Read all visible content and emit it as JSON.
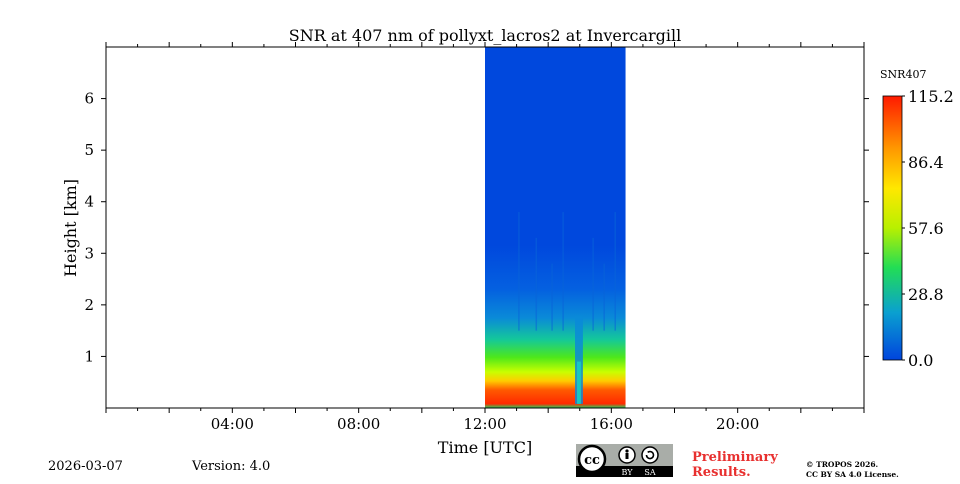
{
  "chart_data": {
    "type": "heatmap",
    "title": "SNR at 407 nm of pollyxt_lacros2 at Invercargill",
    "xlabel": "Time [UTC]",
    "ylabel": "Height [km]",
    "xlim_hours": [
      0,
      24
    ],
    "ylim_km": [
      0,
      7
    ],
    "x_ticks": [
      {
        "value": 4,
        "label": "04:00"
      },
      {
        "value": 8,
        "label": "08:00"
      },
      {
        "value": 12,
        "label": "12:00"
      },
      {
        "value": 16,
        "label": "16:00"
      },
      {
        "value": 20,
        "label": "20:00"
      }
    ],
    "y_ticks": [
      {
        "value": 1,
        "label": "1"
      },
      {
        "value": 2,
        "label": "2"
      },
      {
        "value": 3,
        "label": "3"
      },
      {
        "value": 4,
        "label": "4"
      },
      {
        "value": 5,
        "label": "5"
      },
      {
        "value": 6,
        "label": "6"
      }
    ],
    "data_time_range_hours": [
      12.0,
      16.45
    ],
    "colorbar": {
      "label": "SNR407",
      "min": 0.0,
      "max": 115.2,
      "ticks": [
        "0.0",
        "28.8",
        "57.6",
        "86.4",
        "115.2"
      ]
    },
    "profile_regions": [
      {
        "height_range_km": [
          0.0,
          0.08
        ],
        "snr": 35
      },
      {
        "height_range_km": [
          0.08,
          0.6
        ],
        "snr": 105
      },
      {
        "height_range_km": [
          0.6,
          1.2
        ],
        "snr": 45
      },
      {
        "height_range_km": [
          1.2,
          1.8
        ],
        "snr": 22
      },
      {
        "height_range_km": [
          1.8,
          7.0
        ],
        "snr": 6
      }
    ],
    "gap_time_hours": [
      14.85,
      15.1
    ]
  },
  "footer": {
    "date": "2026-03-07",
    "version": "Version: 4.0",
    "preliminary_line1": "Preliminary",
    "preliminary_line2": "Results.",
    "copyright_line1": "© TROPOS 2026.",
    "copyright_line2": "CC BY SA 4.0 License.",
    "license_badge": {
      "cc": "cc",
      "by": "BY",
      "sa": "SA"
    }
  },
  "colors": {
    "preliminary": "#e8302f",
    "background_snr": "#0048dd"
  }
}
